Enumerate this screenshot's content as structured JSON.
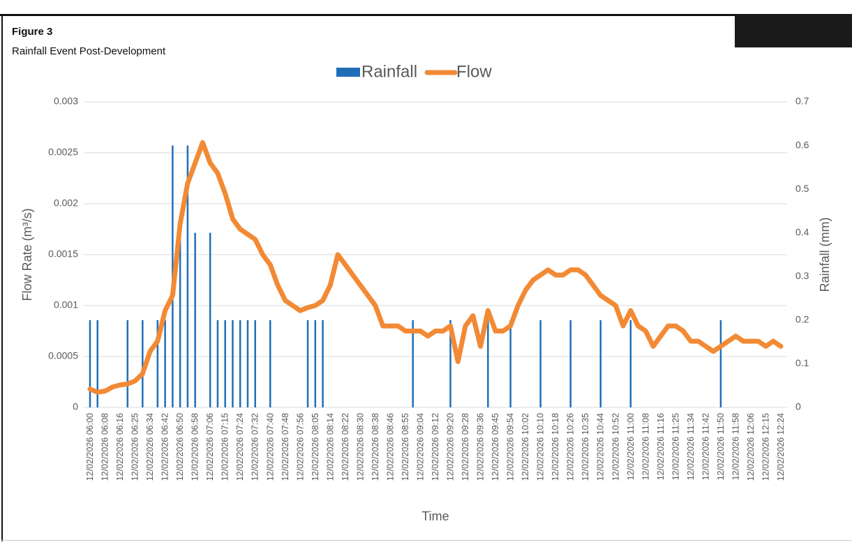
{
  "chart_data": {
    "type": "combo",
    "title": "Figure 3",
    "subtitle": "Rainfall Event Post-Development",
    "x_label": "Time",
    "y_label": "Flow Rate (m³/s)",
    "y2_label": "Rainfall (mm)",
    "categories": [
      "12/02/2026 06:00",
      null,
      "12/02/2026 06:08",
      null,
      "12/02/2026 06:16",
      null,
      "12/02/2026 06:25",
      null,
      "12/02/2026 06:34",
      null,
      "12/02/2026 06:42",
      null,
      "12/02/2026 06:50",
      null,
      "12/02/2026 06:58",
      null,
      "12/02/2026 07:06",
      null,
      "12/02/2026 07:15",
      null,
      "12/02/2026 07:24",
      null,
      "12/02/2026 07:32",
      null,
      "12/02/2026 07:40",
      null,
      "12/02/2026 07:48",
      null,
      "12/02/2026 07:56",
      null,
      "12/02/2026 08:05",
      null,
      "12/02/2026 08:14",
      null,
      "12/02/2026 08:22",
      null,
      "12/02/2026 08:30",
      null,
      "12/02/2026 08:38",
      null,
      "12/02/2026 08:46",
      null,
      "12/02/2026 08:55",
      null,
      "12/02/2026 09:04",
      null,
      "12/02/2026 09:12",
      null,
      "12/02/2026 09:20",
      null,
      "12/02/2026 09:28",
      null,
      "12/02/2026 09:36",
      null,
      "12/02/2026 09:45",
      null,
      "12/02/2026 09:54",
      null,
      "12/02/2026 10:02",
      null,
      "12/02/2026 10:10",
      null,
      "12/02/2026 10:18",
      null,
      "12/02/2026 10:26",
      null,
      "12/02/2026 10:35",
      null,
      "12/02/2026 10:44",
      null,
      "12/02/2026 10:52",
      null,
      "12/02/2026 11:00",
      null,
      "12/02/2026 11:08",
      null,
      "12/02/2026 11:16",
      null,
      "12/02/2026 11:25",
      null,
      "12/02/2026 11:34",
      null,
      "12/02/2026 11:42",
      null,
      "12/02/2026 11:50",
      null,
      "12/02/2026 11:58",
      null,
      "12/02/2026 12:06",
      null,
      "12/02/2026 12:15",
      null,
      "12/02/2026 12:24"
    ],
    "series": [
      {
        "name": "Rainfall",
        "type": "bar",
        "axis": "y2",
        "color": "#1f6fb8",
        "values": [
          0.2,
          0.2,
          0,
          0,
          0,
          0.2,
          0,
          0.2,
          0,
          0.2,
          0.2,
          0.6,
          0.4,
          0.6,
          0.4,
          0,
          0.4,
          0.2,
          0.2,
          0.2,
          0.2,
          0.2,
          0.2,
          0,
          0.2,
          0,
          0,
          0,
          0,
          0.2,
          0.2,
          0.2,
          0,
          0,
          0,
          0,
          0,
          0,
          0,
          0,
          0,
          0,
          0,
          0.2,
          0,
          0,
          0,
          0,
          0.2,
          0,
          0,
          0,
          0,
          0.2,
          0,
          0,
          0.2,
          0,
          0,
          0,
          0.2,
          0,
          0,
          0,
          0.2,
          0,
          0,
          0,
          0.2,
          0,
          0,
          0,
          0.2,
          0,
          0,
          0,
          0,
          0,
          0,
          0,
          0,
          0,
          0,
          0,
          0.2,
          0,
          0,
          0,
          0,
          0,
          0,
          0,
          0
        ]
      },
      {
        "name": "Flow",
        "type": "line",
        "axis": "y",
        "color": "#f28a35",
        "values": [
          0.00018,
          0.00015,
          0.00016,
          0.0002,
          0.00022,
          0.00023,
          0.00026,
          0.00033,
          0.00055,
          0.00065,
          0.00095,
          0.0011,
          0.0018,
          0.0022,
          0.0024,
          0.0026,
          0.0024,
          0.0023,
          0.0021,
          0.00185,
          0.00175,
          0.0017,
          0.00165,
          0.0015,
          0.0014,
          0.0012,
          0.00105,
          0.001,
          0.00095,
          0.00098,
          0.001,
          0.00105,
          0.0012,
          0.0015,
          0.0014,
          0.0013,
          0.0012,
          0.0011,
          0.001,
          0.0008,
          0.0008,
          0.0008,
          0.00075,
          0.00075,
          0.00075,
          0.0007,
          0.00075,
          0.00075,
          0.0008,
          0.00045,
          0.0008,
          0.0009,
          0.0006,
          0.00095,
          0.00075,
          0.00075,
          0.0008,
          0.001,
          0.00115,
          0.00125,
          0.0013,
          0.00135,
          0.0013,
          0.0013,
          0.00135,
          0.00135,
          0.0013,
          0.0012,
          0.0011,
          0.00105,
          0.001,
          0.0008,
          0.00095,
          0.0008,
          0.00075,
          0.0006,
          0.0007,
          0.0008,
          0.0008,
          0.00075,
          0.00065,
          0.00065,
          0.0006,
          0.00055,
          0.0006,
          0.00065,
          0.0007,
          0.00065,
          0.00065,
          0.00065,
          0.0006,
          0.00065,
          0.0006
        ]
      }
    ],
    "ylim": [
      0,
      0.003
    ],
    "yticks": [
      0,
      0.0005,
      0.001,
      0.0015,
      0.002,
      0.0025,
      0.003
    ],
    "y2lim": [
      0,
      0.7
    ],
    "y2ticks": [
      0,
      0.1,
      0.2,
      0.3,
      0.4,
      0.5,
      0.6,
      0.7
    ],
    "grid": true,
    "legend": "top"
  }
}
